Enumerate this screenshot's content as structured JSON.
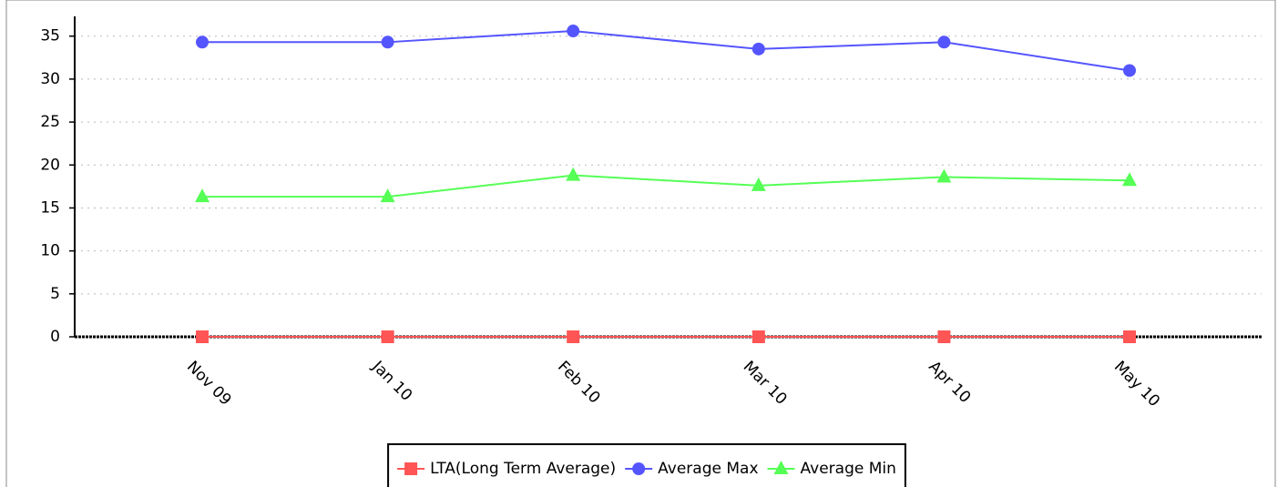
{
  "chart_data": {
    "type": "line",
    "categories": [
      "Nov 09",
      "Jan 10",
      "Feb 10",
      "Mar 10",
      "Apr 10",
      "May 10"
    ],
    "series": [
      {
        "name": "LTA(Long Term Average)",
        "color": "#ff5555",
        "marker": "square",
        "values": [
          0,
          0,
          0,
          0,
          0,
          0
        ]
      },
      {
        "name": "Average Max",
        "color": "#5555ff",
        "marker": "circle",
        "values": [
          34.3,
          34.3,
          35.6,
          33.5,
          34.3,
          31.0
        ]
      },
      {
        "name": "Average Min",
        "color": "#55ff55",
        "marker": "triangle",
        "values": [
          16.3,
          16.3,
          18.8,
          17.6,
          18.6,
          18.2
        ]
      }
    ],
    "ylim": [
      0,
      37.3
    ],
    "yticks": [
      0,
      5,
      10,
      15,
      20,
      25,
      30,
      35
    ],
    "grid": true,
    "legend": "bottom"
  }
}
